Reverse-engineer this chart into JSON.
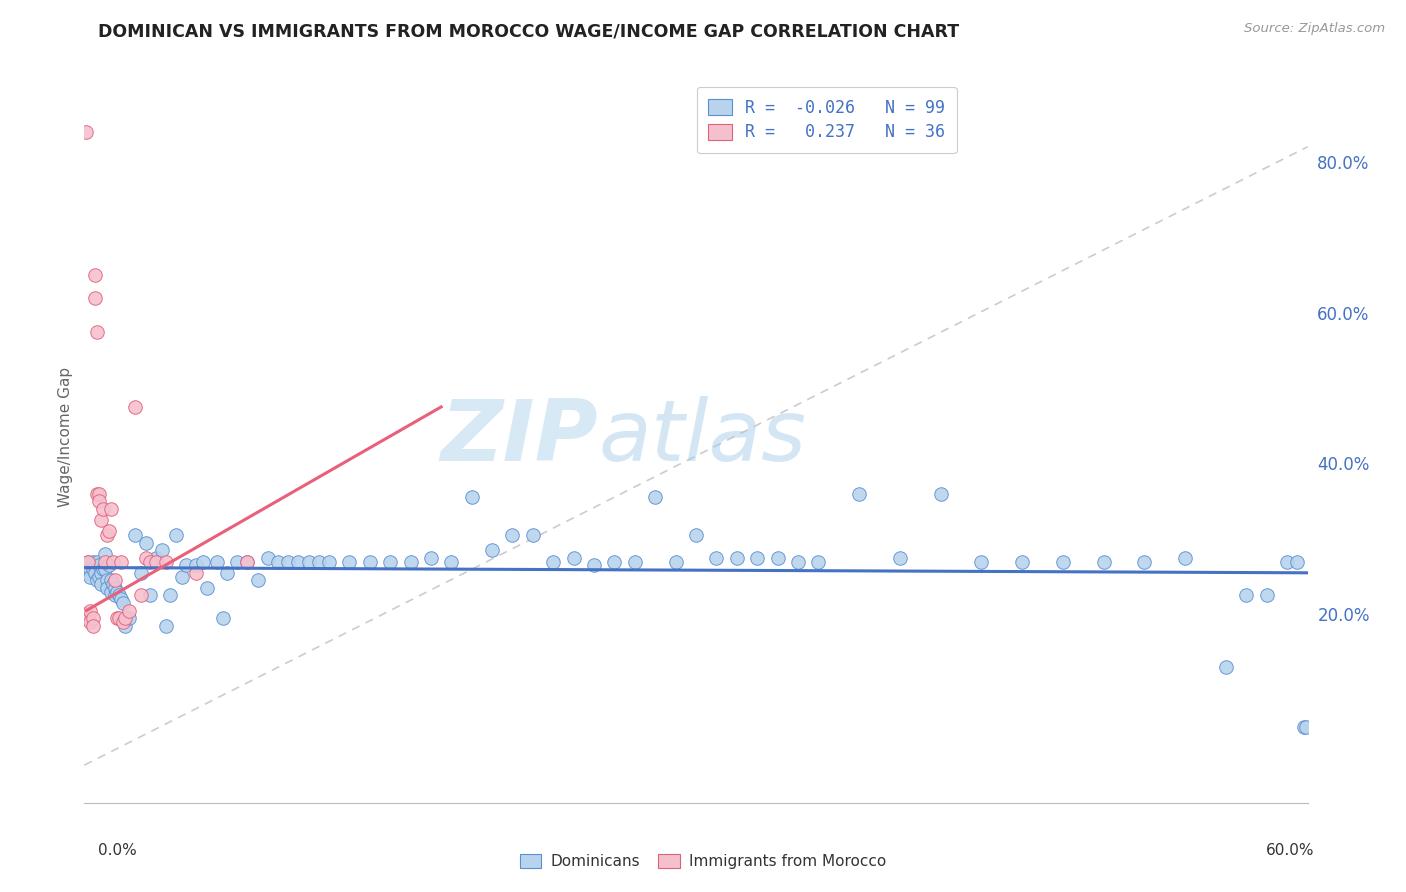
{
  "title": "DOMINICAN VS IMMIGRANTS FROM MOROCCO WAGE/INCOME GAP CORRELATION CHART",
  "source": "Source: ZipAtlas.com",
  "ylabel": "Wage/Income Gap",
  "xlim": [
    0.0,
    0.6
  ],
  "ylim": [
    -0.05,
    0.92
  ],
  "ytick_values": [
    0.2,
    0.4,
    0.6,
    0.8
  ],
  "watermark_text": "ZIP",
  "watermark_text2": "atlas",
  "blue_fill": "#b8d4ed",
  "blue_edge": "#5b8fd4",
  "pink_fill": "#f5c0ce",
  "pink_edge": "#e0607a",
  "blue_line": "#4472c4",
  "pink_line": "#e8607a",
  "diagonal_color": "#cccccc",
  "grid_color": "#e0e0e0",
  "tick_color": "#4472c4",
  "legend1_label1": "R = -0.026",
  "legend1_label1b": "N = 99",
  "legend1_label2": "R =  0.237",
  "legend1_label2b": "N = 36",
  "leg2_label1": "Dominicans",
  "leg2_label2": "Immigrants from Morocco",
  "blue_scatter_x": [
    0.001,
    0.002,
    0.002,
    0.003,
    0.003,
    0.004,
    0.004,
    0.005,
    0.005,
    0.006,
    0.006,
    0.007,
    0.007,
    0.008,
    0.008,
    0.009,
    0.01,
    0.01,
    0.011,
    0.011,
    0.012,
    0.013,
    0.013,
    0.014,
    0.015,
    0.015,
    0.016,
    0.017,
    0.018,
    0.019,
    0.02,
    0.022,
    0.025,
    0.028,
    0.03,
    0.032,
    0.035,
    0.038,
    0.04,
    0.042,
    0.045,
    0.048,
    0.05,
    0.055,
    0.058,
    0.06,
    0.065,
    0.068,
    0.07,
    0.075,
    0.08,
    0.085,
    0.09,
    0.095,
    0.1,
    0.105,
    0.11,
    0.115,
    0.12,
    0.13,
    0.14,
    0.15,
    0.16,
    0.17,
    0.18,
    0.19,
    0.2,
    0.21,
    0.22,
    0.23,
    0.24,
    0.25,
    0.26,
    0.27,
    0.28,
    0.29,
    0.3,
    0.31,
    0.32,
    0.33,
    0.34,
    0.35,
    0.36,
    0.38,
    0.4,
    0.42,
    0.44,
    0.46,
    0.48,
    0.5,
    0.52,
    0.54,
    0.56,
    0.57,
    0.58,
    0.59,
    0.595,
    0.598,
    0.599
  ],
  "blue_scatter_y": [
    0.265,
    0.27,
    0.255,
    0.26,
    0.25,
    0.27,
    0.26,
    0.265,
    0.255,
    0.27,
    0.245,
    0.265,
    0.25,
    0.255,
    0.24,
    0.26,
    0.28,
    0.26,
    0.245,
    0.235,
    0.265,
    0.23,
    0.245,
    0.24,
    0.235,
    0.225,
    0.23,
    0.225,
    0.22,
    0.215,
    0.185,
    0.195,
    0.305,
    0.255,
    0.295,
    0.225,
    0.275,
    0.285,
    0.185,
    0.225,
    0.305,
    0.25,
    0.265,
    0.265,
    0.27,
    0.235,
    0.27,
    0.195,
    0.255,
    0.27,
    0.27,
    0.245,
    0.275,
    0.27,
    0.27,
    0.27,
    0.27,
    0.27,
    0.27,
    0.27,
    0.27,
    0.27,
    0.27,
    0.275,
    0.27,
    0.355,
    0.285,
    0.305,
    0.305,
    0.27,
    0.275,
    0.265,
    0.27,
    0.27,
    0.355,
    0.27,
    0.305,
    0.275,
    0.275,
    0.275,
    0.275,
    0.27,
    0.27,
    0.36,
    0.275,
    0.36,
    0.27,
    0.27,
    0.27,
    0.27,
    0.27,
    0.275,
    0.13,
    0.225,
    0.225,
    0.27,
    0.27,
    0.05,
    0.05
  ],
  "pink_scatter_x": [
    0.001,
    0.001,
    0.002,
    0.002,
    0.003,
    0.003,
    0.004,
    0.004,
    0.005,
    0.005,
    0.006,
    0.006,
    0.007,
    0.007,
    0.008,
    0.009,
    0.01,
    0.011,
    0.012,
    0.013,
    0.014,
    0.015,
    0.016,
    0.017,
    0.018,
    0.019,
    0.02,
    0.022,
    0.025,
    0.028,
    0.03,
    0.032,
    0.035,
    0.04,
    0.055,
    0.08
  ],
  "pink_scatter_y": [
    0.84,
    0.2,
    0.27,
    0.195,
    0.205,
    0.19,
    0.195,
    0.185,
    0.65,
    0.62,
    0.575,
    0.36,
    0.36,
    0.35,
    0.325,
    0.34,
    0.27,
    0.305,
    0.31,
    0.34,
    0.27,
    0.245,
    0.195,
    0.195,
    0.27,
    0.19,
    0.195,
    0.205,
    0.475,
    0.225,
    0.275,
    0.27,
    0.27,
    0.27,
    0.255,
    0.27
  ],
  "blue_trend_x": [
    0.0,
    0.6
  ],
  "blue_trend_y": [
    0.262,
    0.255
  ],
  "pink_trend_x": [
    0.001,
    0.175
  ],
  "pink_trend_y": [
    0.205,
    0.475
  ]
}
